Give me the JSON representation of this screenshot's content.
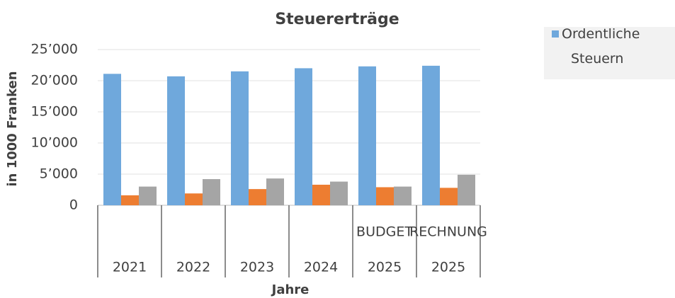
{
  "chart_data": {
    "type": "bar",
    "title": "Steuererträge",
    "categories": [
      "2021",
      "2022",
      "2023",
      "2024",
      "2025",
      "2025"
    ],
    "sub_categories": [
      null,
      null,
      null,
      null,
      "BUDGET",
      "RECHNUNG"
    ],
    "series": [
      {
        "name": "Ordentliche Steuern",
        "color": "#6fa8dc",
        "values": [
          21100,
          20700,
          21500,
          22000,
          22300,
          22400
        ]
      },
      {
        "color": "#ed7d31",
        "values": [
          1600,
          1900,
          2600,
          3300,
          2900,
          2800
        ]
      },
      {
        "color": "#a5a5a5",
        "values": [
          3000,
          4200,
          4300,
          3800,
          3000,
          4900
        ]
      }
    ],
    "ylabel": "in 1000 Franken",
    "xlabel": "Jahre",
    "ylim": [
      0,
      25000
    ],
    "yticks": [
      0,
      {
        "value": 5000,
        "label": "5’000"
      },
      {
        "value": 10000,
        "label": "10’000"
      },
      {
        "value": 15000,
        "label": "15’000"
      },
      {
        "value": 20000,
        "label": "20’000"
      },
      {
        "value": 25000,
        "label": "25’000"
      }
    ],
    "grid": true,
    "legend": "right"
  }
}
